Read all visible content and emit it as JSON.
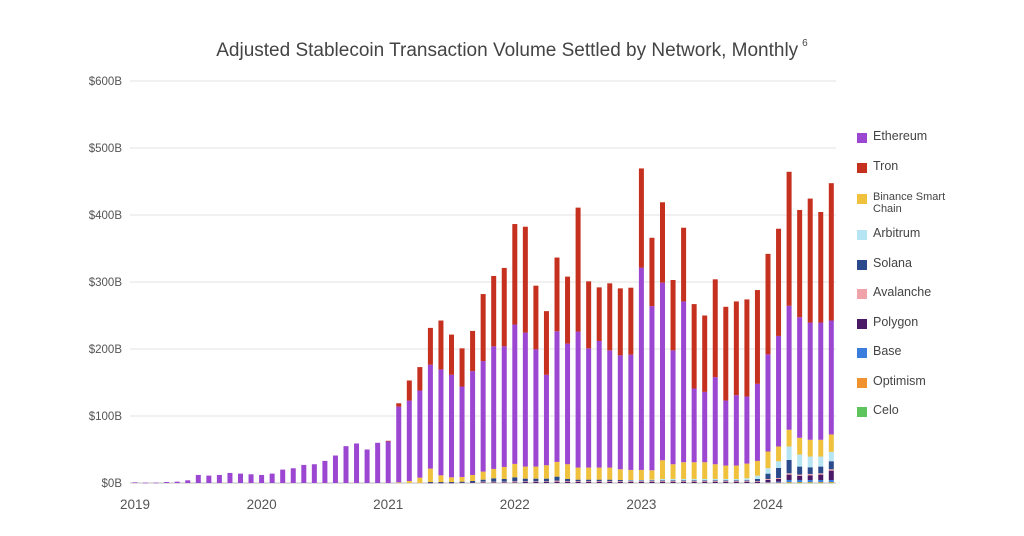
{
  "chart_data": {
    "type": "bar",
    "stacked": true,
    "title": "Adjusted Stablecoin Transaction Volume Settled by Network, Monthly",
    "title_footnote": "6",
    "xlabel": "",
    "ylabel": "",
    "ylim": [
      0,
      600
    ],
    "y_unit": "B",
    "grid": true,
    "legend_position": "right",
    "y_ticks": [
      {
        "value": 0,
        "label": "$0B"
      },
      {
        "value": 100,
        "label": "$100B"
      },
      {
        "value": 200,
        "label": "$200B"
      },
      {
        "value": 300,
        "label": "$300B"
      },
      {
        "value": 400,
        "label": "$400B"
      },
      {
        "value": 500,
        "label": "$500B"
      },
      {
        "value": 600,
        "label": "$600B"
      }
    ],
    "x_ticks": [
      {
        "index": 0,
        "label": "2019"
      },
      {
        "index": 12,
        "label": "2020"
      },
      {
        "index": 24,
        "label": "2021"
      },
      {
        "index": 36,
        "label": "2022"
      },
      {
        "index": 48,
        "label": "2023"
      },
      {
        "index": 60,
        "label": "2024"
      }
    ],
    "categories": [
      "2019-01",
      "2019-02",
      "2019-03",
      "2019-04",
      "2019-05",
      "2019-06",
      "2019-07",
      "2019-08",
      "2019-09",
      "2019-10",
      "2019-11",
      "2019-12",
      "2020-01",
      "2020-02",
      "2020-03",
      "2020-04",
      "2020-05",
      "2020-06",
      "2020-07",
      "2020-08",
      "2020-09",
      "2020-10",
      "2020-11",
      "2020-12",
      "2021-01",
      "2021-02",
      "2021-03",
      "2021-04",
      "2021-05",
      "2021-06",
      "2021-07",
      "2021-08",
      "2021-09",
      "2021-10",
      "2021-11",
      "2021-12",
      "2022-01",
      "2022-02",
      "2022-03",
      "2022-04",
      "2022-05",
      "2022-06",
      "2022-07",
      "2022-08",
      "2022-09",
      "2022-10",
      "2022-11",
      "2022-12",
      "2023-01",
      "2023-02",
      "2023-03",
      "2023-04",
      "2023-05",
      "2023-06",
      "2023-07",
      "2023-08",
      "2023-09",
      "2023-10",
      "2023-11",
      "2023-12",
      "2024-01",
      "2024-02",
      "2024-03",
      "2024-04",
      "2024-05",
      "2024-06",
      "2024-07"
    ],
    "series": [
      {
        "name": "Celo",
        "color": "#5ec45e",
        "values": [
          0,
          0,
          0,
          0,
          0,
          0,
          0,
          0,
          0,
          0,
          0,
          0,
          0,
          0,
          0,
          0,
          0,
          0,
          0,
          0,
          0,
          0,
          0,
          0,
          0,
          0,
          0,
          0,
          0,
          0,
          0,
          0,
          0,
          0,
          0,
          0,
          0,
          0,
          0,
          0,
          0,
          0,
          0,
          0,
          0,
          0,
          0,
          0,
          0,
          0,
          0,
          0,
          0,
          0,
          0,
          0,
          0,
          0,
          0,
          0,
          0,
          0,
          0.5,
          0.5,
          0.5,
          0.5,
          0.5
        ]
      },
      {
        "name": "Optimism",
        "color": "#f0922d",
        "values": [
          0,
          0,
          0,
          0,
          0,
          0,
          0,
          0,
          0,
          0,
          0,
          0,
          0,
          0,
          0,
          0,
          0,
          0,
          0,
          0,
          0,
          0,
          0,
          0,
          0,
          0,
          0,
          0,
          0,
          0,
          0,
          0,
          0,
          0,
          0,
          0,
          0,
          0,
          0,
          0,
          0,
          0,
          0,
          0,
          0,
          0,
          0,
          0,
          0,
          0,
          0,
          0,
          0,
          0,
          0,
          0,
          0,
          0,
          0,
          0,
          0.5,
          0.5,
          1,
          1,
          1,
          1,
          1
        ]
      },
      {
        "name": "Base",
        "color": "#3b7ddd",
        "values": [
          0,
          0,
          0,
          0,
          0,
          0,
          0,
          0,
          0,
          0,
          0,
          0,
          0,
          0,
          0,
          0,
          0,
          0,
          0,
          0,
          0,
          0,
          0,
          0,
          0,
          0,
          0,
          0,
          0,
          0,
          0,
          0,
          0,
          0,
          0,
          0,
          0,
          0,
          0,
          0,
          0,
          0,
          0,
          0,
          0,
          0,
          0,
          0,
          0,
          0,
          0,
          0,
          0,
          0,
          0,
          0,
          0,
          0,
          0,
          0,
          1,
          1.5,
          3,
          3,
          3,
          3,
          3
        ]
      },
      {
        "name": "Polygon",
        "color": "#4a1a66",
        "values": [
          0,
          0,
          0,
          0,
          0,
          0,
          0,
          0,
          0,
          0,
          0,
          0,
          0,
          0,
          0,
          0,
          0,
          0,
          0,
          0,
          0,
          0,
          0,
          0,
          0,
          0,
          0,
          0,
          0.5,
          0.5,
          0.5,
          1,
          1,
          1,
          1,
          1,
          1,
          1.5,
          1.5,
          1.5,
          2,
          2,
          2,
          2,
          2,
          2,
          2,
          2,
          2,
          2,
          2,
          2,
          2,
          2,
          2,
          2,
          2,
          2,
          2,
          2,
          3,
          4,
          8,
          6,
          7,
          8,
          14
        ]
      },
      {
        "name": "Avalanche",
        "color": "#f0a3a8",
        "values": [
          0,
          0,
          0,
          0,
          0,
          0,
          0,
          0,
          0,
          0,
          0,
          0,
          0,
          0,
          0,
          0,
          0,
          0,
          0,
          0,
          0,
          0,
          0,
          0,
          0,
          0,
          0,
          0,
          0,
          0,
          0,
          0,
          0,
          1,
          1,
          1,
          1.5,
          1,
          1,
          1,
          1.5,
          1,
          1,
          1,
          1,
          1,
          1,
          1,
          1,
          1,
          1,
          1,
          1,
          1,
          1,
          1,
          1,
          1,
          1,
          1,
          1.5,
          1.5,
          2,
          2,
          2,
          2,
          2
        ]
      },
      {
        "name": "Solana",
        "color": "#2b4a8c",
        "values": [
          0,
          0,
          0,
          0,
          0,
          0,
          0,
          0,
          0,
          0,
          0,
          0,
          0,
          0,
          0,
          0,
          0,
          0,
          0,
          0,
          0,
          0,
          0,
          0,
          0,
          0,
          0,
          0,
          1,
          1,
          1,
          1,
          2,
          3,
          5,
          4,
          6,
          4,
          4,
          4,
          6,
          3,
          2,
          2,
          2,
          2,
          1.5,
          1,
          1,
          1,
          1,
          1,
          1,
          1,
          1,
          1,
          1,
          1,
          1,
          3,
          8,
          15,
          20,
          12,
          10,
          10,
          12
        ]
      },
      {
        "name": "Arbitrum",
        "color": "#b5e4f2",
        "values": [
          0,
          0,
          0,
          0,
          0,
          0,
          0,
          0,
          0,
          0,
          0,
          0,
          0,
          0,
          0,
          0,
          0,
          0,
          0,
          0,
          0,
          0,
          0,
          0,
          0,
          0,
          0,
          0,
          0,
          0,
          0,
          0,
          0,
          0,
          0,
          0,
          0,
          0,
          0,
          0,
          0,
          0,
          0,
          0,
          0,
          0,
          0,
          0.5,
          0.5,
          1,
          2,
          2,
          2,
          2,
          2,
          2,
          2,
          2,
          3,
          5,
          8,
          10,
          20,
          18,
          16,
          15,
          14
        ]
      },
      {
        "name": "Binance Smart Chain",
        "color": "#efc13d",
        "values": [
          0,
          0,
          0,
          0,
          0,
          0,
          0,
          0,
          0,
          0,
          0,
          0,
          0,
          0,
          0,
          0,
          0,
          0,
          0,
          0,
          0,
          0,
          0,
          0,
          0,
          1,
          3,
          8,
          20,
          10,
          7,
          7,
          9,
          12,
          14,
          18,
          20,
          18,
          18,
          20,
          22,
          22,
          18,
          18,
          18,
          18,
          16,
          15,
          15,
          14,
          28,
          22,
          25,
          25,
          25,
          22,
          20,
          20,
          22,
          22,
          25,
          22,
          25,
          25,
          25,
          25,
          26
        ]
      },
      {
        "name": "Ethereum",
        "color": "#9b47d1",
        "values": [
          1,
          0.5,
          0.5,
          1.5,
          2,
          4,
          12,
          11,
          12,
          15,
          14,
          13,
          12,
          14,
          20,
          22,
          27,
          28,
          33,
          41,
          55,
          59,
          50,
          60,
          62,
          113,
          120,
          130,
          155,
          158,
          153,
          135,
          155,
          165,
          183,
          180,
          208,
          200,
          175,
          135,
          195,
          180,
          203,
          178,
          189,
          175,
          170,
          172,
          302,
          245,
          265,
          170,
          240,
          110,
          105,
          130,
          97,
          105,
          100,
          115,
          145,
          165,
          185,
          180,
          175,
          175,
          170
        ]
      },
      {
        "name": "Tron",
        "color": "#c5301f",
        "values": [
          0,
          0,
          0,
          0,
          0,
          0,
          0,
          0,
          0,
          0,
          0,
          0,
          0,
          0,
          0,
          0,
          0,
          0,
          0,
          0,
          0,
          0,
          0,
          0,
          1,
          5,
          30,
          35,
          55,
          73,
          60,
          57,
          60,
          100,
          105,
          117,
          150,
          158,
          95,
          95,
          110,
          100,
          185,
          100,
          80,
          100,
          100,
          100,
          148,
          102,
          120,
          105,
          110,
          126,
          114,
          146,
          140,
          140,
          145,
          140,
          150,
          160,
          200,
          160,
          185,
          165,
          205
        ]
      }
    ]
  },
  "legend": {
    "items": [
      {
        "label": "Ethereum",
        "color": "#9b47d1"
      },
      {
        "label": "Tron",
        "color": "#c5301f"
      },
      {
        "label": "Binance Smart Chain",
        "color": "#efc13d"
      },
      {
        "label": "Arbitrum",
        "color": "#b5e4f2"
      },
      {
        "label": "Solana",
        "color": "#2b4a8c"
      },
      {
        "label": "Avalanche",
        "color": "#f0a3a8"
      },
      {
        "label": "Polygon",
        "color": "#4a1a66"
      },
      {
        "label": "Base",
        "color": "#3b7ddd"
      },
      {
        "label": "Optimism",
        "color": "#f0922d"
      },
      {
        "label": "Celo",
        "color": "#5ec45e"
      }
    ]
  }
}
